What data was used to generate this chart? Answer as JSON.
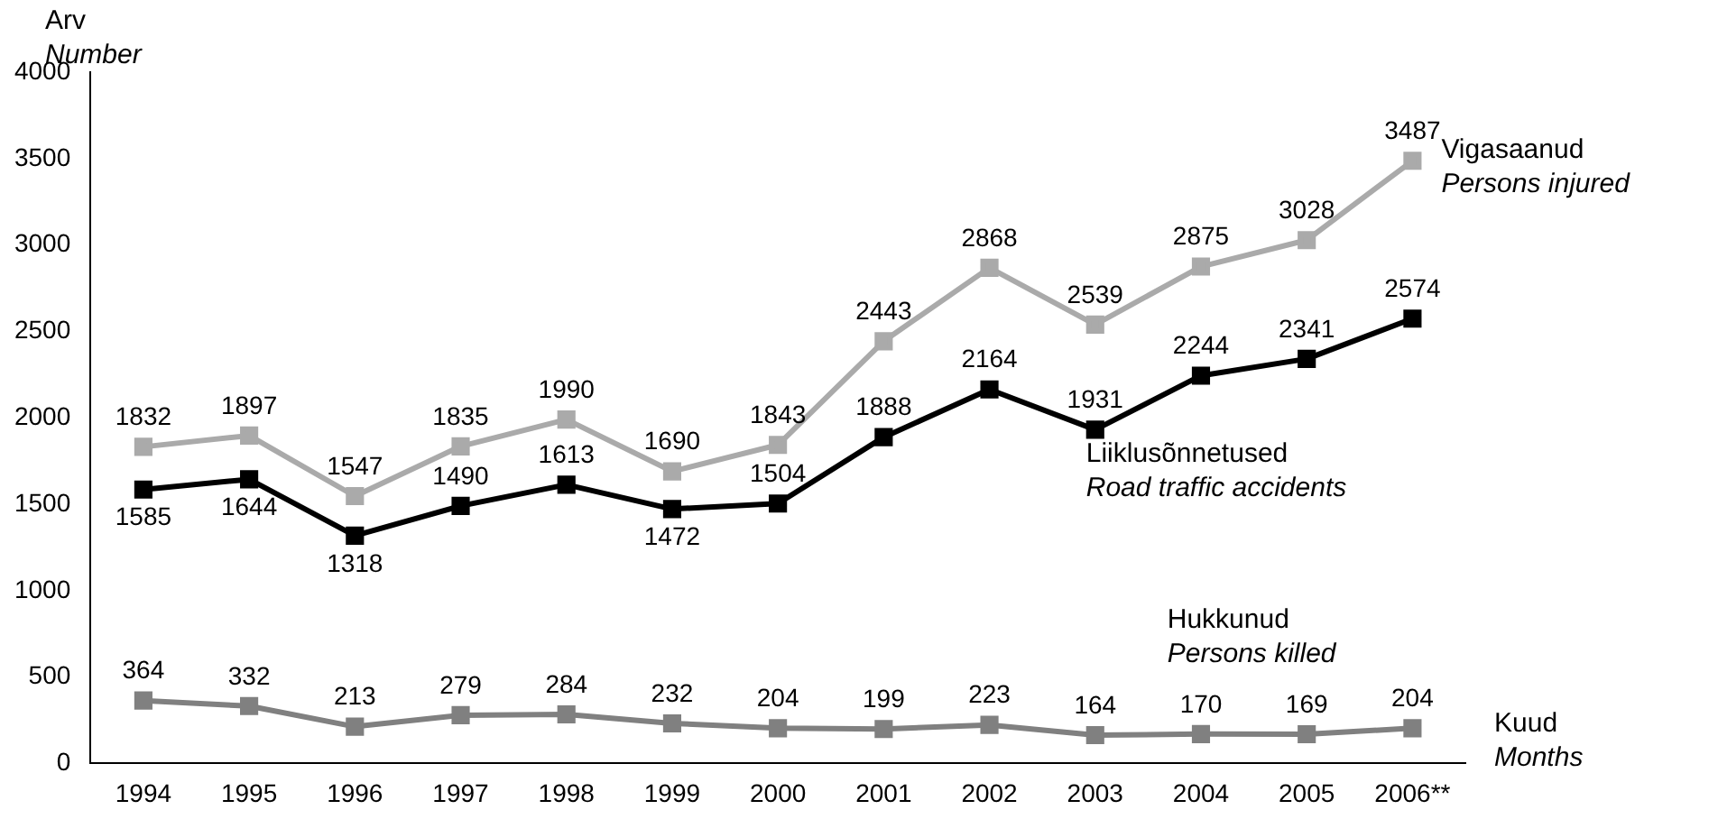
{
  "chart_data": {
    "type": "line",
    "ylabel": "Arv\nNumber",
    "xlabel": "Kuud\nMonths",
    "categories": [
      "1994",
      "1995",
      "1996",
      "1997",
      "1998",
      "1999",
      "2000",
      "2001",
      "2002",
      "2003",
      "2004",
      "2005",
      "2006**"
    ],
    "series": [
      {
        "name": "Vigasaanud\nPersons injured",
        "color": "#aaaaaa",
        "values": [
          1832,
          1897,
          1547,
          1835,
          1990,
          1690,
          1843,
          2443,
          2868,
          2539,
          2875,
          3028,
          3487
        ]
      },
      {
        "name": "Liiklusõnnetused\nRoad traffic accidents",
        "color": "#000000",
        "values": [
          1585,
          1644,
          1318,
          1490,
          1613,
          1472,
          1504,
          1888,
          2164,
          1931,
          2244,
          2341,
          2574
        ]
      },
      {
        "name": "Hukkunud\nPersons killed",
        "color": "#808080",
        "values": [
          364,
          332,
          213,
          279,
          284,
          232,
          204,
          199,
          223,
          164,
          170,
          169,
          204
        ]
      }
    ],
    "ylim": [
      0,
      4000
    ],
    "yticks": [
      0,
      500,
      1000,
      1500,
      2000,
      2500,
      3000,
      3500,
      4000
    ],
    "grid": false,
    "legend": false,
    "marker": "square",
    "line_style": "solid",
    "data_labels": true
  }
}
